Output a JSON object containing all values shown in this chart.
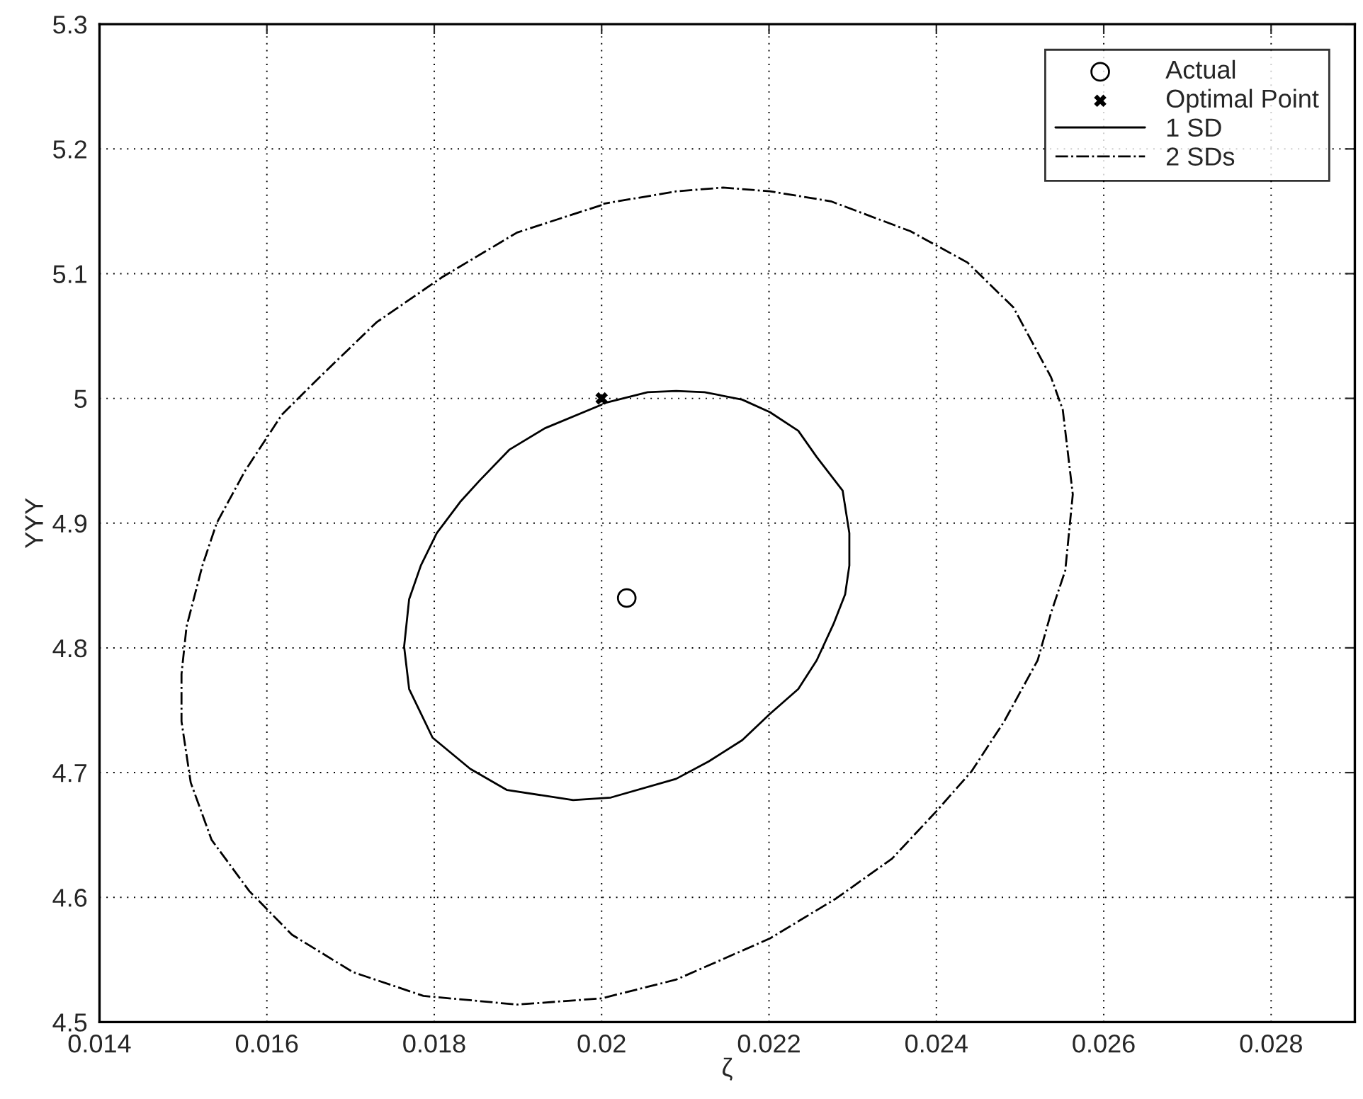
{
  "chart_data": {
    "type": "line",
    "xlabel": "ζ",
    "ylabel": "YYY",
    "xlim": [
      0.014,
      0.029
    ],
    "ylim": [
      4.5,
      5.3
    ],
    "xticks": [
      0.014,
      0.016,
      0.018,
      0.02,
      0.022,
      0.024,
      0.026,
      0.028
    ],
    "yticks": [
      4.5,
      4.6,
      4.7,
      4.8,
      4.9,
      5,
      5.1,
      5.2,
      5.3
    ],
    "grid": true,
    "legend": "top right",
    "series": [
      {
        "name": "Actual",
        "type": "scatter",
        "marker": "circle",
        "color": "#000000",
        "x": [
          0.0203
        ],
        "values": [
          4.84
        ]
      },
      {
        "name": "Optimal Point",
        "type": "scatter",
        "marker": "cross",
        "color": "#000000",
        "x": [
          0.02
        ],
        "values": [
          5.0
        ]
      },
      {
        "name": "1 SD",
        "line_style": "solid",
        "color": "#000000",
        "x": [
          0.02,
          0.01932,
          0.0189,
          0.01854,
          0.01831,
          0.01803,
          0.01784,
          0.0177,
          0.01764,
          0.0177,
          0.01798,
          0.01843,
          0.01887,
          0.01966,
          0.02011,
          0.02089,
          0.02128,
          0.02168,
          0.02201,
          0.02235,
          0.02257,
          0.02277,
          0.02291,
          0.02296,
          0.02296,
          0.02288,
          0.02257,
          0.02235,
          0.02201,
          0.02168,
          0.02123,
          0.02089,
          0.02055,
          0.02002
        ],
        "values": [
          4.995,
          4.976,
          4.959,
          4.934,
          4.917,
          4.892,
          4.866,
          4.839,
          4.801,
          4.767,
          4.728,
          4.703,
          4.686,
          4.678,
          4.68,
          4.695,
          4.709,
          4.726,
          4.747,
          4.767,
          4.79,
          4.819,
          4.843,
          4.866,
          4.892,
          4.926,
          4.953,
          4.974,
          4.989,
          4.999,
          5.005,
          5.006,
          5.005,
          4.996
        ]
      },
      {
        "name": "2 SDs",
        "line_style": "dashdot",
        "color": "#000000",
        "x": [
          0.02,
          0.01899,
          0.01809,
          0.01731,
          0.01663,
          0.01618,
          0.01574,
          0.0154,
          0.01523,
          0.01504,
          0.01498,
          0.01498,
          0.01509,
          0.01534,
          0.01579,
          0.0163,
          0.01703,
          0.01787,
          0.01899,
          0.02,
          0.02089,
          0.02201,
          0.0228,
          0.02347,
          0.024,
          0.02442,
          0.02481,
          0.02521,
          0.02537,
          0.02554,
          0.02563,
          0.02551,
          0.02537,
          0.02492,
          0.02437,
          0.02369,
          0.02274,
          0.02201,
          0.02145,
          0.02089,
          0.02002
        ],
        "values": [
          5.155,
          5.133,
          5.097,
          5.061,
          5.017,
          4.987,
          4.942,
          4.9,
          4.866,
          4.817,
          4.779,
          4.741,
          4.692,
          4.646,
          4.605,
          4.57,
          4.54,
          4.521,
          4.514,
          4.519,
          4.534,
          4.567,
          4.599,
          4.631,
          4.669,
          4.701,
          4.741,
          4.79,
          4.828,
          4.862,
          4.923,
          4.991,
          5.017,
          5.073,
          5.109,
          5.134,
          5.158,
          5.166,
          5.169,
          5.166,
          5.156
        ]
      }
    ]
  }
}
